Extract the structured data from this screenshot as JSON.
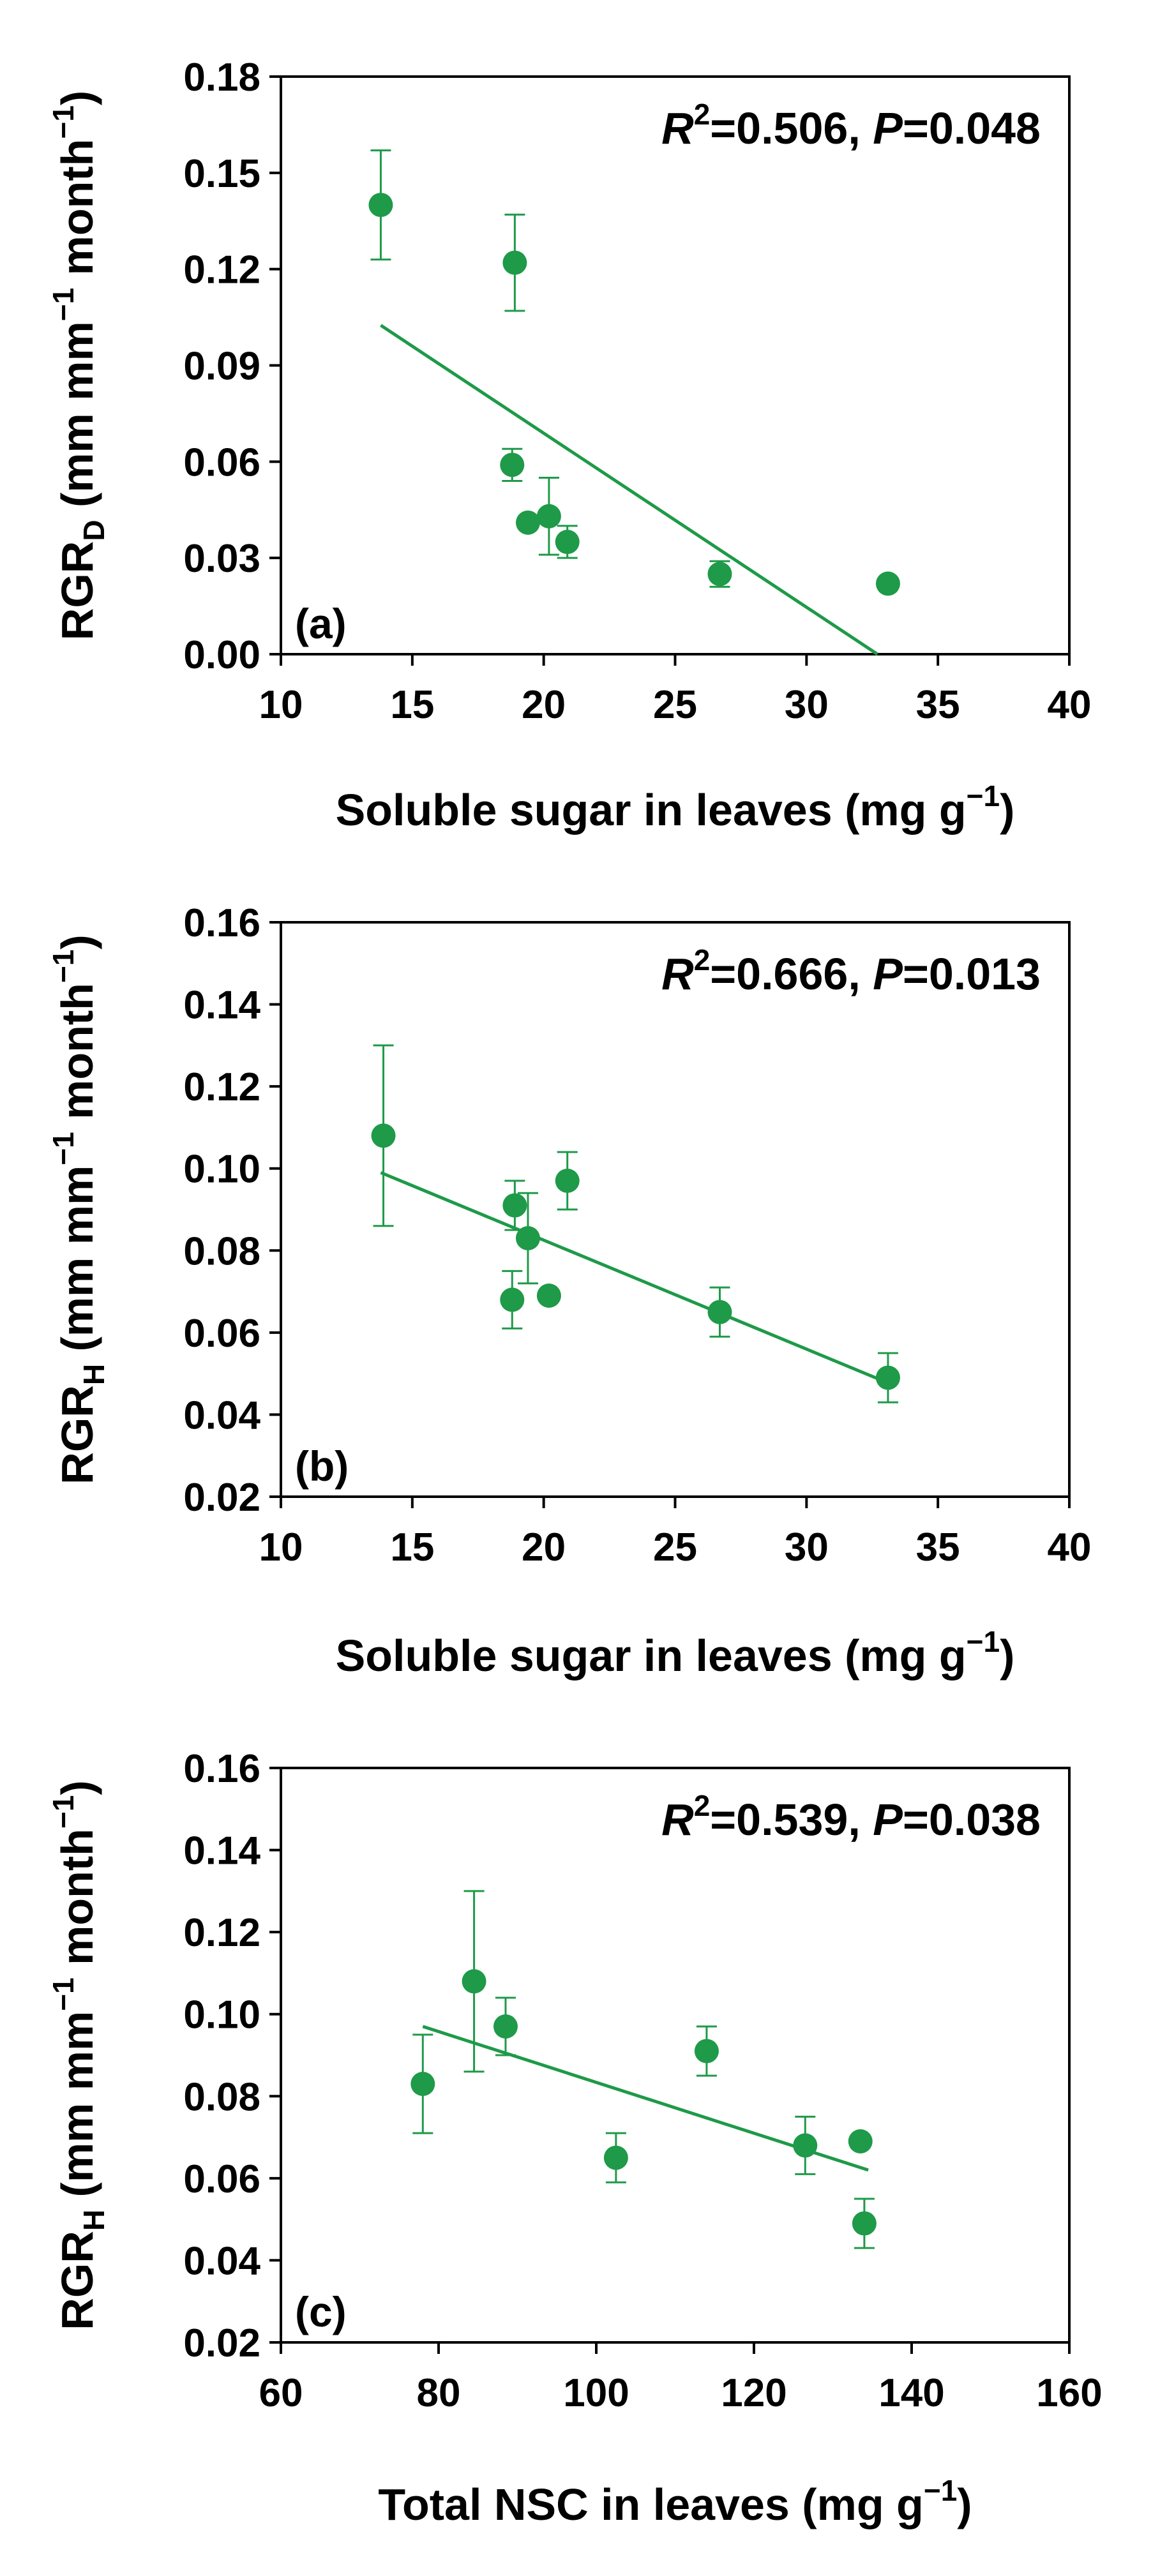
{
  "colors": {
    "marker": "#1e9a48",
    "line": "#1e9a48",
    "axis": "#000000"
  },
  "chart_data": [
    {
      "type": "scatter",
      "panel": "(a)",
      "stat_r2": "0.506",
      "stat_p": "0.048",
      "xlabel": "Soluble sugar in leaves (mg g",
      "xlabel_sup": "−1",
      "xlabel_close": ")",
      "ylabel_main": "RGR",
      "ylabel_sub": "D",
      "ylabel_rest": " (mm mm",
      "ylabel_sup": "−1",
      "ylabel_end": " month",
      "ylabel_sup2": "−1",
      "ylabel_close": ")",
      "xlim": [
        10,
        40
      ],
      "ylim": [
        0,
        0.18
      ],
      "xticks": [
        10,
        15,
        20,
        25,
        30,
        35,
        40
      ],
      "yticks": [
        0,
        0.03,
        0.06,
        0.09,
        0.12,
        0.15,
        0.18
      ],
      "xtick_labels": [
        "10",
        "15",
        "20",
        "25",
        "30",
        "35",
        "40"
      ],
      "ytick_labels": [
        "0.00",
        "0.03",
        "0.06",
        "0.09",
        "0.12",
        "0.15",
        "0.18"
      ],
      "points": [
        {
          "x": 13.8,
          "y": 0.14,
          "err": 0.017
        },
        {
          "x": 18.9,
          "y": 0.122,
          "err": 0.015
        },
        {
          "x": 18.8,
          "y": 0.059,
          "err": 0.005
        },
        {
          "x": 19.4,
          "y": 0.041,
          "err": 0.0
        },
        {
          "x": 20.2,
          "y": 0.043,
          "err": 0.012
        },
        {
          "x": 20.9,
          "y": 0.035,
          "err": 0.005
        },
        {
          "x": 26.7,
          "y": 0.025,
          "err": 0.004
        },
        {
          "x": 33.1,
          "y": 0.022,
          "err": 0.0
        }
      ],
      "fit": {
        "x1": 13.8,
        "y1": 0.1025,
        "x2": 32.7,
        "y2": 0.0
      }
    },
    {
      "type": "scatter",
      "panel": "(b)",
      "stat_r2": "0.666",
      "stat_p": "0.013",
      "xlabel": "Soluble sugar in leaves (mg g",
      "xlabel_sup": "−1",
      "xlabel_close": ")",
      "ylabel_main": "RGR",
      "ylabel_sub": "H",
      "ylabel_rest": " (mm mm",
      "ylabel_sup": "−1",
      "ylabel_end": " month",
      "ylabel_sup2": "−1",
      "ylabel_close": ")",
      "xlim": [
        10,
        40
      ],
      "ylim": [
        0.02,
        0.16
      ],
      "xticks": [
        10,
        15,
        20,
        25,
        30,
        35,
        40
      ],
      "yticks": [
        0.02,
        0.04,
        0.06,
        0.08,
        0.1,
        0.12,
        0.14,
        0.16
      ],
      "xtick_labels": [
        "10",
        "15",
        "20",
        "25",
        "30",
        "35",
        "40"
      ],
      "ytick_labels": [
        "0.02",
        "0.04",
        "0.06",
        "0.08",
        "0.10",
        "0.12",
        "0.14",
        "0.16"
      ],
      "points": [
        {
          "x": 13.9,
          "y": 0.108,
          "err": 0.022
        },
        {
          "x": 18.9,
          "y": 0.091,
          "err": 0.006
        },
        {
          "x": 18.8,
          "y": 0.068,
          "err": 0.007
        },
        {
          "x": 19.4,
          "y": 0.083,
          "err": 0.011
        },
        {
          "x": 20.2,
          "y": 0.069,
          "err": 0.0
        },
        {
          "x": 20.9,
          "y": 0.097,
          "err": 0.007
        },
        {
          "x": 26.7,
          "y": 0.065,
          "err": 0.006
        },
        {
          "x": 33.1,
          "y": 0.049,
          "err": 0.006
        }
      ],
      "fit": {
        "x1": 13.8,
        "y1": 0.099,
        "x2": 33.0,
        "y2": 0.048
      }
    },
    {
      "type": "scatter",
      "panel": "(c)",
      "stat_r2": "0.539",
      "stat_p": "0.038",
      "xlabel": "Total NSC in leaves (mg g",
      "xlabel_sup": "−1",
      "xlabel_close": ")",
      "ylabel_main": "RGR",
      "ylabel_sub": "H",
      "ylabel_rest": " (mm mm",
      "ylabel_sup": "−1",
      "ylabel_end": " month",
      "ylabel_sup2": "−1",
      "ylabel_close": ")",
      "xlim": [
        60,
        160
      ],
      "ylim": [
        0.02,
        0.16
      ],
      "xticks": [
        60,
        80,
        100,
        120,
        140,
        160
      ],
      "yticks": [
        0.02,
        0.04,
        0.06,
        0.08,
        0.1,
        0.12,
        0.14,
        0.16
      ],
      "xtick_labels": [
        "60",
        "80",
        "100",
        "120",
        "140",
        "160"
      ],
      "ytick_labels": [
        "0.02",
        "0.04",
        "0.06",
        "0.08",
        "0.10",
        "0.12",
        "0.14",
        "0.16"
      ],
      "points": [
        {
          "x": 78.0,
          "y": 0.083,
          "err": 0.012
        },
        {
          "x": 84.5,
          "y": 0.108,
          "err": 0.022
        },
        {
          "x": 88.5,
          "y": 0.097,
          "err": 0.007
        },
        {
          "x": 102.5,
          "y": 0.065,
          "err": 0.006
        },
        {
          "x": 114.0,
          "y": 0.091,
          "err": 0.006
        },
        {
          "x": 126.5,
          "y": 0.068,
          "err": 0.007
        },
        {
          "x": 133.5,
          "y": 0.069,
          "err": 0.0
        },
        {
          "x": 134.0,
          "y": 0.049,
          "err": 0.006
        }
      ],
      "fit": {
        "x1": 78.0,
        "y1": 0.097,
        "x2": 134.5,
        "y2": 0.062
      }
    }
  ]
}
